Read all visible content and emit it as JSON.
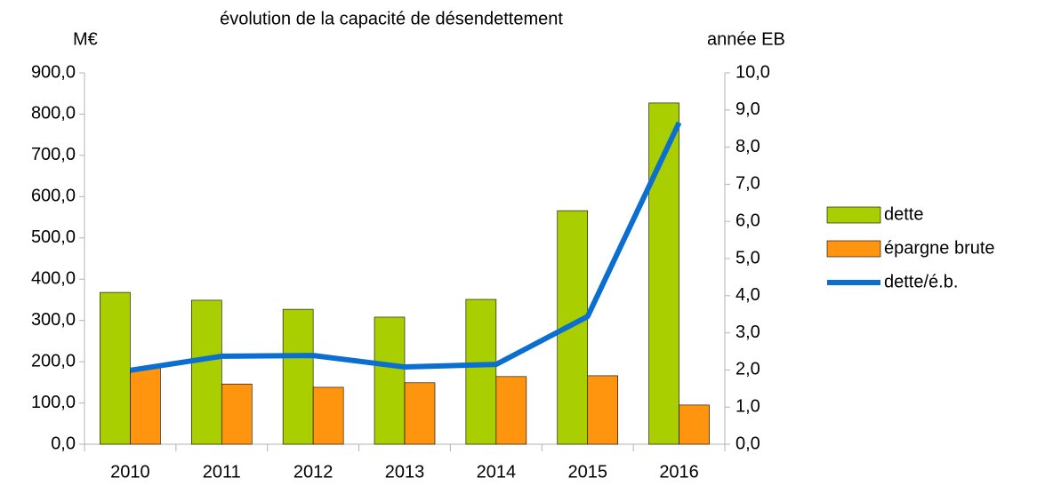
{
  "chart_data": {
    "type": "bar",
    "title": "évolution de la capacité de désendettement",
    "y_label": "M€",
    "y2_label": "année EB",
    "categories": [
      "2010",
      "2011",
      "2012",
      "2013",
      "2014",
      "2015",
      "2016"
    ],
    "series": [
      {
        "name": "dette",
        "color": "#aacf00",
        "type": "bar",
        "values": [
          368,
          349,
          327,
          308,
          351,
          566,
          827
        ]
      },
      {
        "name": "épargne brute",
        "color": "#ff950e",
        "type": "bar",
        "values": [
          185,
          146,
          138,
          149,
          164,
          166,
          95
        ]
      },
      {
        "name": "dette/é.b.",
        "color": "#0a6fd0",
        "type": "line",
        "axis": "y2",
        "values": [
          1.99,
          2.37,
          2.39,
          2.08,
          2.15,
          3.44,
          8.66
        ]
      }
    ],
    "ylim": [
      0,
      900
    ],
    "yticks": [
      {
        "value": 0,
        "label": "0,0"
      },
      {
        "value": 100,
        "label": "100,0"
      },
      {
        "value": 200,
        "label": "200,0"
      },
      {
        "value": 300,
        "label": "300,0"
      },
      {
        "value": 400,
        "label": "400,0"
      },
      {
        "value": 500,
        "label": "500,0"
      },
      {
        "value": 600,
        "label": "600,0"
      },
      {
        "value": 700,
        "label": "700,0"
      },
      {
        "value": 800,
        "label": "800,0"
      },
      {
        "value": 900,
        "label": "900,0"
      }
    ],
    "y2lim": [
      0,
      10
    ],
    "y2ticks": [
      {
        "value": 0,
        "label": "0,0"
      },
      {
        "value": 1,
        "label": "1,0"
      },
      {
        "value": 2,
        "label": "2,0"
      },
      {
        "value": 3,
        "label": "3,0"
      },
      {
        "value": 4,
        "label": "4,0"
      },
      {
        "value": 5,
        "label": "5,0"
      },
      {
        "value": 6,
        "label": "6,0"
      },
      {
        "value": 7,
        "label": "7,0"
      },
      {
        "value": 8,
        "label": "8,0"
      },
      {
        "value": 9,
        "label": "9,0"
      },
      {
        "value": 10,
        "label": "10,0"
      }
    ],
    "grid": false,
    "legend": "right"
  }
}
